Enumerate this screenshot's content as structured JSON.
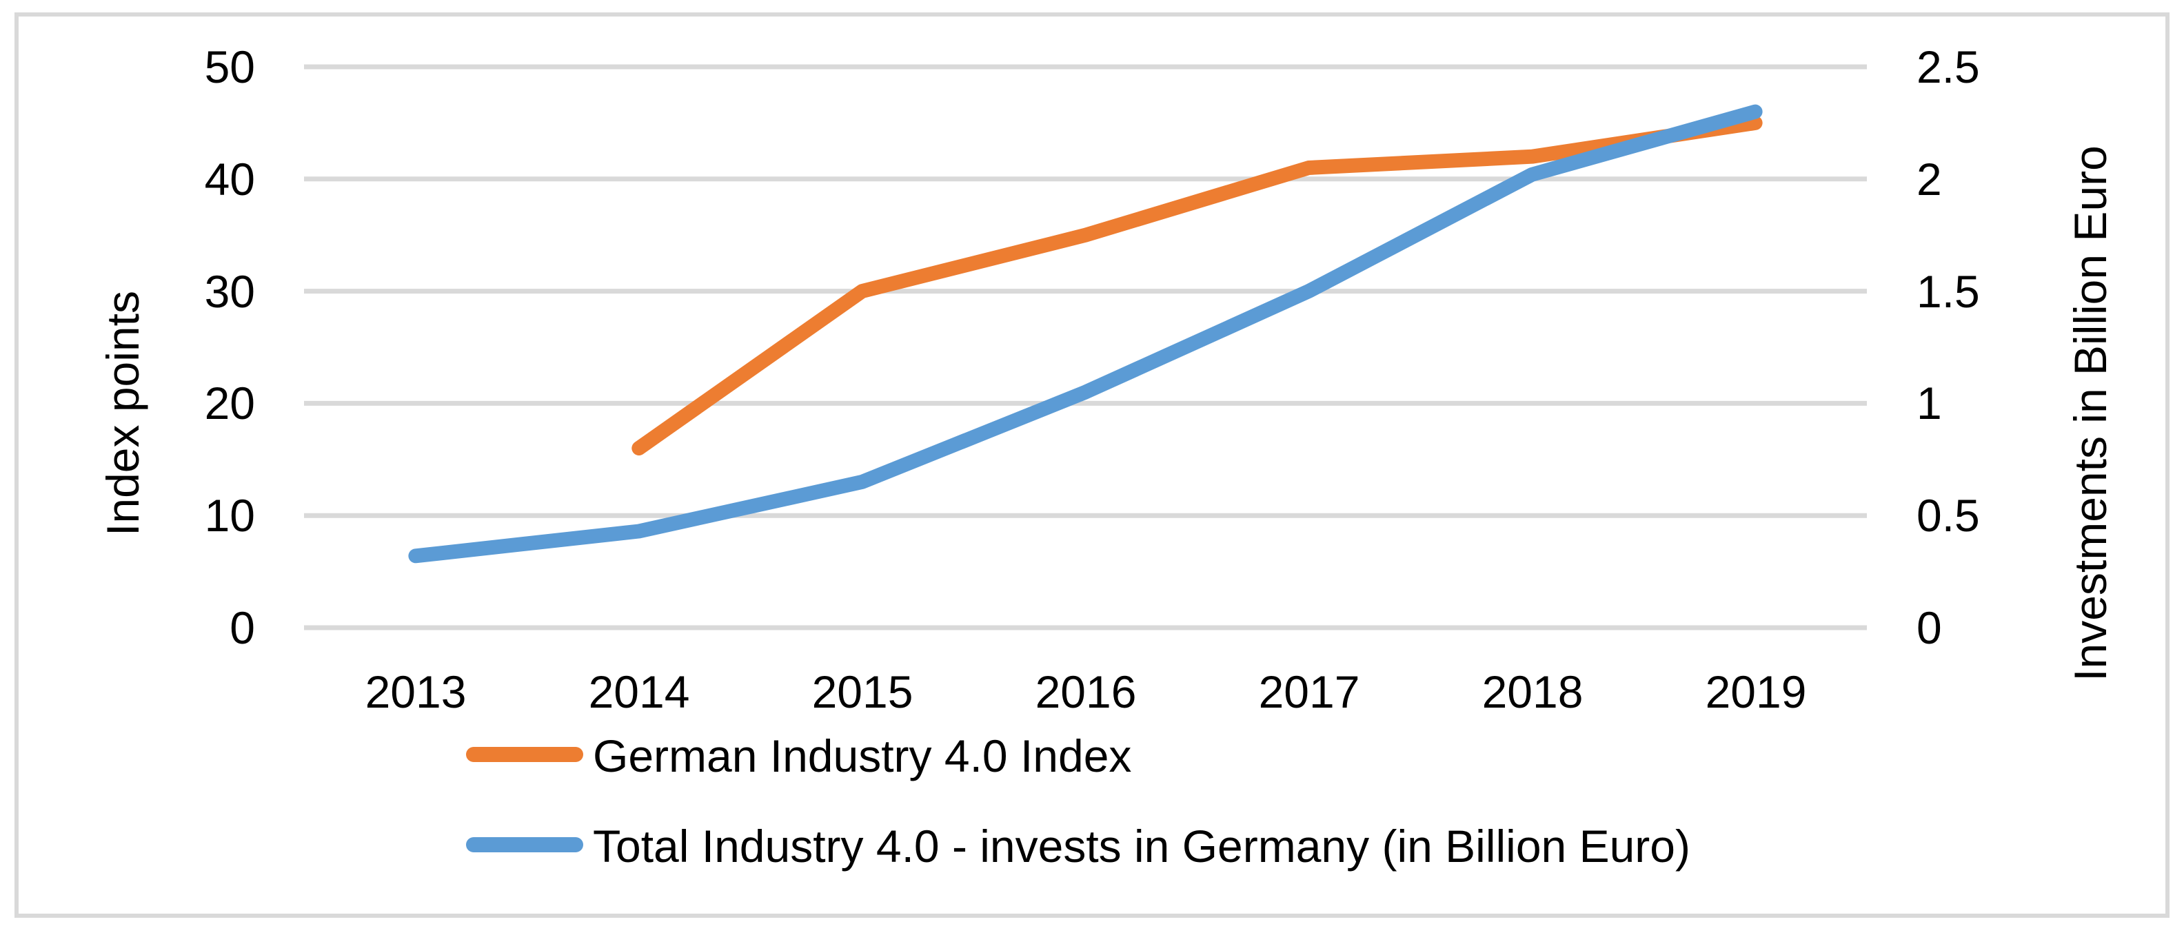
{
  "figure": {
    "axes": {
      "left": {
        "title": "Index points",
        "ticks": [
          "50",
          "40",
          "30",
          "20",
          "10",
          "0"
        ]
      },
      "right": {
        "title": "Investments in Billion Euro",
        "ticks": [
          "2.5",
          "2",
          "1.5",
          "1",
          "0.5",
          "0"
        ]
      },
      "x": {
        "labels": [
          "2013",
          "2014",
          "2015",
          "2016",
          "2017",
          "2018",
          "2019"
        ]
      }
    },
    "legend": [
      {
        "label": "German Industry 4.0 Index",
        "color": "#ED7D31"
      },
      {
        "label": "Total Industry 4.0 - invests in Germany (in Billion Euro)",
        "color": "#5B9BD5"
      }
    ]
  },
  "chart_data": {
    "type": "line",
    "categories": [
      "2013",
      "2014",
      "2015",
      "2016",
      "2017",
      "2018",
      "2019"
    ],
    "series": [
      {
        "name": "German Industry 4.0 Index",
        "axis": "left",
        "color": "#ED7D31",
        "x": [
          "2014",
          "2015",
          "2016",
          "2017",
          "2018",
          "2019"
        ],
        "values": [
          16,
          30,
          35,
          41,
          42,
          45
        ]
      },
      {
        "name": "Total Industry 4.0 - invests in Germany (in Billion Euro)",
        "axis": "right",
        "color": "#5B9BD5",
        "x": [
          "2013",
          "2014",
          "2015",
          "2016",
          "2017",
          "2018",
          "2019"
        ],
        "values": [
          0.32,
          0.43,
          0.65,
          1.05,
          1.5,
          2.02,
          2.3
        ]
      }
    ],
    "title": "",
    "xlabel": "",
    "ylabel_left": "Index points",
    "ylabel_right": "Investments in Billion Euro",
    "ylim_left": [
      0,
      50
    ],
    "ylim_right": [
      0,
      2.5
    ],
    "ytick_step_left": 10,
    "ytick_step_right": 0.5,
    "grid": true,
    "gridline_color": "#D9D9D9",
    "legend_position": "bottom-left"
  },
  "colors": {
    "frame": "#D9D9D9",
    "grid": "#D9D9D9",
    "text": "#000000",
    "background": "#ffffff"
  }
}
